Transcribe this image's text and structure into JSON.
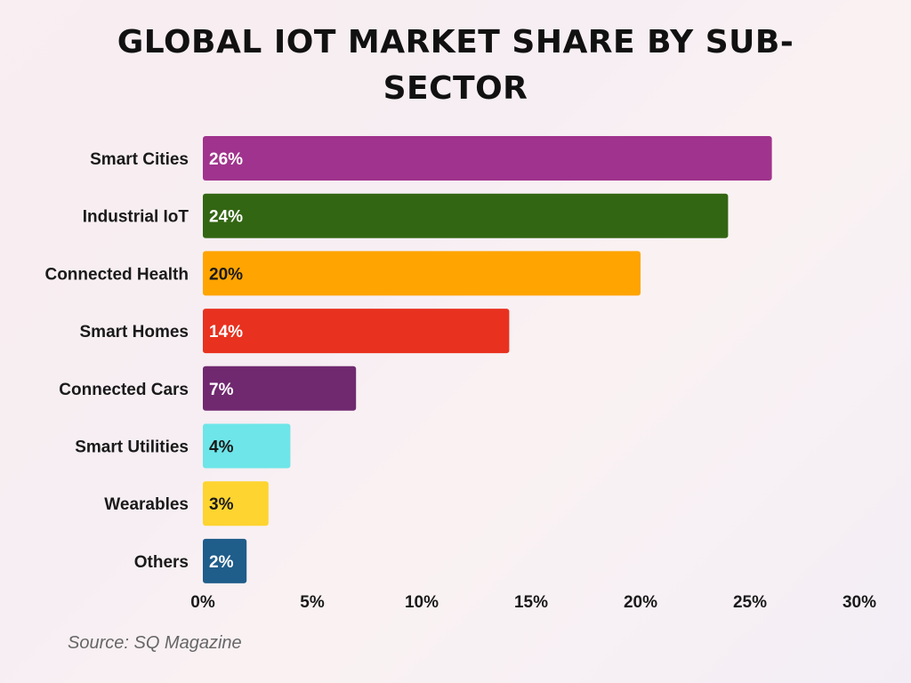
{
  "chart_data": {
    "type": "bar",
    "orientation": "horizontal",
    "title": "GLOBAL IOT MARKET SHARE BY SUB-SECTOR",
    "title_lines": [
      "GLOBAL IOT MARKET SHARE BY SUB-",
      "SECTOR"
    ],
    "categories": [
      "Smart Cities",
      "Industrial IoT",
      "Connected Health",
      "Smart Homes",
      "Connected Cars",
      "Smart Utilities",
      "Wearables",
      "Others"
    ],
    "values": [
      26,
      24,
      20,
      14,
      7,
      4,
      3,
      2
    ],
    "data_labels": [
      "26%",
      "24%",
      "20%",
      "14%",
      "7%",
      "4%",
      "3%",
      "2%"
    ],
    "colors": [
      "#a0338d",
      "#336613",
      "#ffa400",
      "#e8311f",
      "#70296f",
      "#6ee5e8",
      "#fdd430",
      "#1f5d8a"
    ],
    "label_colors": [
      "#ffffff",
      "#ffffff",
      "#1a1a1a",
      "#ffffff",
      "#ffffff",
      "#1a1a1a",
      "#1a1a1a",
      "#ffffff"
    ],
    "xlim": [
      0,
      30
    ],
    "x_ticks": [
      0,
      5,
      10,
      15,
      20,
      25,
      30
    ],
    "x_tick_labels": [
      "0%",
      "5%",
      "10%",
      "15%",
      "20%",
      "25%",
      "30%"
    ],
    "xlabel": "",
    "ylabel": "",
    "grid": false,
    "legend": "none"
  },
  "source": "Source: SQ Magazine"
}
